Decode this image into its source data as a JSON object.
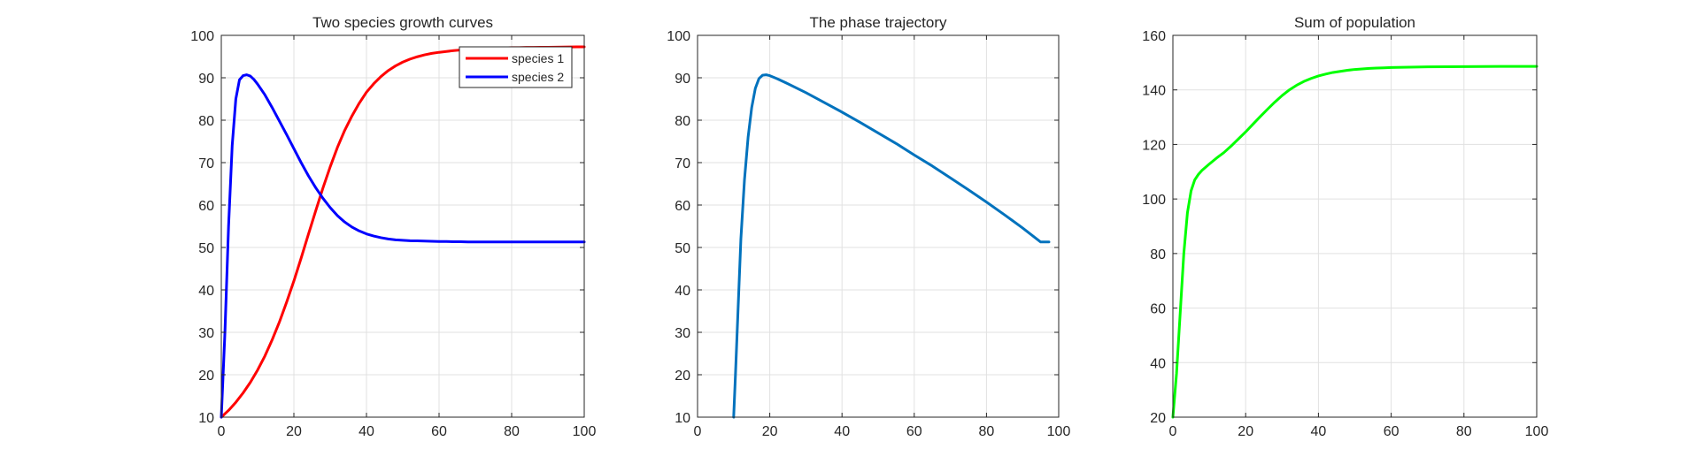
{
  "chart_data": [
    {
      "type": "line",
      "title": "Two species growth curves",
      "xlabel": "",
      "ylabel": "",
      "xlim": [
        0,
        100
      ],
      "ylim": [
        10,
        100
      ],
      "xticks": [
        0,
        20,
        40,
        60,
        80,
        100
      ],
      "yticks": [
        10,
        20,
        30,
        40,
        50,
        60,
        70,
        80,
        90,
        100
      ],
      "grid": true,
      "legend": "top-right",
      "series": [
        {
          "name": "species 1",
          "color": "#ff0000",
          "x": [
            0,
            2,
            4,
            6,
            8,
            10,
            12,
            14,
            16,
            18,
            20,
            22,
            24,
            26,
            28,
            30,
            32,
            34,
            36,
            38,
            40,
            42,
            44,
            46,
            48,
            50,
            52,
            54,
            56,
            58,
            60,
            62,
            64,
            66,
            68,
            70,
            72,
            74,
            76,
            78,
            80,
            82,
            84,
            86,
            88,
            90,
            92,
            94,
            96,
            98,
            100
          ],
          "y": [
            10,
            11.6,
            13.5,
            15.7,
            18.2,
            21.1,
            24.4,
            28.2,
            32.4,
            37.1,
            42.1,
            47.5,
            53.1,
            58.6,
            64.0,
            69.0,
            73.6,
            77.6,
            81.0,
            84.0,
            86.6,
            88.6,
            90.3,
            91.7,
            92.8,
            93.7,
            94.4,
            94.95,
            95.4,
            95.75,
            96.0,
            96.2,
            96.4,
            96.55,
            96.7,
            96.8,
            96.9,
            96.95,
            97.0,
            97.05,
            97.1,
            97.12,
            97.15,
            97.17,
            97.19,
            97.2,
            97.22,
            97.24,
            97.26,
            97.28,
            97.3
          ]
        },
        {
          "name": "species 2",
          "color": "#0000ff",
          "x": [
            0,
            1,
            2,
            3,
            4,
            5,
            6,
            7,
            8,
            9,
            10,
            12,
            14,
            16,
            18,
            20,
            22,
            24,
            26,
            28,
            30,
            32,
            34,
            36,
            38,
            40,
            42,
            44,
            46,
            48,
            50,
            52,
            54,
            56,
            58,
            60,
            62,
            64,
            66,
            68,
            70,
            72,
            74,
            76,
            78,
            80,
            82,
            84,
            86,
            88,
            90,
            92,
            94,
            96,
            98,
            100
          ],
          "y": [
            10,
            30,
            55,
            74,
            85,
            89.5,
            90.5,
            90.7,
            90.4,
            89.6,
            88.5,
            86.0,
            83.0,
            79.8,
            76.6,
            73.3,
            70.0,
            66.9,
            64.1,
            61.6,
            59.4,
            57.5,
            56.0,
            54.8,
            53.9,
            53.2,
            52.7,
            52.3,
            52.0,
            51.8,
            51.7,
            51.6,
            51.55,
            51.5,
            51.45,
            51.4,
            51.4,
            51.35,
            51.35,
            51.3,
            51.3,
            51.3,
            51.3,
            51.3,
            51.3,
            51.3,
            51.3,
            51.3,
            51.3,
            51.3,
            51.3,
            51.3,
            51.3,
            51.3,
            51.3,
            51.3
          ]
        }
      ]
    },
    {
      "type": "line",
      "title": "The phase trajectory",
      "xlabel": "",
      "ylabel": "",
      "xlim": [
        0,
        100
      ],
      "ylim": [
        10,
        100
      ],
      "xticks": [
        0,
        20,
        40,
        60,
        80,
        100
      ],
      "yticks": [
        10,
        20,
        30,
        40,
        50,
        60,
        70,
        80,
        90,
        100
      ],
      "grid": true,
      "series": [
        {
          "color": "#0072bd",
          "x": [
            10,
            10.5,
            11.2,
            12.0,
            13.0,
            14.0,
            15.0,
            16.0,
            17.0,
            18.0,
            19.0,
            20.0,
            22,
            25,
            30,
            35,
            40,
            45,
            50,
            55,
            60,
            65,
            70,
            75,
            80,
            85,
            90,
            95,
            97.3
          ],
          "y": [
            10,
            20,
            35,
            52,
            66,
            76,
            83,
            87.5,
            89.8,
            90.6,
            90.7,
            90.5,
            89.8,
            88.6,
            86.5,
            84.2,
            81.9,
            79.5,
            77.0,
            74.5,
            71.8,
            69.2,
            66.4,
            63.6,
            60.7,
            57.7,
            54.6,
            51.3,
            51.3
          ]
        }
      ]
    },
    {
      "type": "line",
      "title": "Sum of population",
      "xlabel": "",
      "ylabel": "",
      "xlim": [
        0,
        100
      ],
      "ylim": [
        20,
        160
      ],
      "xticks": [
        0,
        20,
        40,
        60,
        80,
        100
      ],
      "yticks": [
        20,
        40,
        60,
        80,
        100,
        120,
        140,
        160
      ],
      "grid": true,
      "series": [
        {
          "color": "#00ff00",
          "x": [
            0,
            1,
            2,
            3,
            4,
            5,
            6,
            7,
            8,
            10,
            12,
            14,
            16,
            18,
            20,
            22,
            24,
            26,
            28,
            30,
            32,
            34,
            36,
            38,
            40,
            42,
            44,
            46,
            48,
            50,
            52,
            54,
            56,
            58,
            60,
            65,
            70,
            75,
            80,
            85,
            90,
            95,
            100
          ],
          "y": [
            20,
            36,
            58,
            80,
            95,
            103,
            107,
            109,
            110.5,
            112.8,
            115,
            117,
            119.4,
            122,
            124.6,
            127.4,
            130.2,
            132.9,
            135.5,
            137.9,
            140.0,
            141.7,
            143.1,
            144.2,
            145.1,
            145.8,
            146.4,
            146.8,
            147.2,
            147.5,
            147.7,
            147.9,
            148.0,
            148.1,
            148.2,
            148.35,
            148.45,
            148.5,
            148.55,
            148.58,
            148.6,
            148.6,
            148.6
          ]
        }
      ]
    }
  ]
}
